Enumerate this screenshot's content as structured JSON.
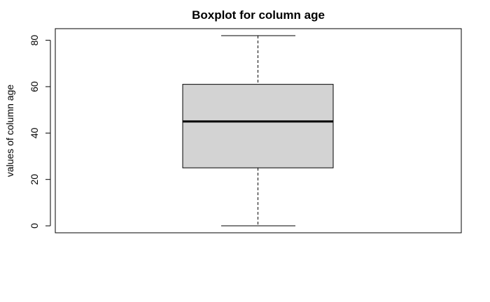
{
  "chart_data": {
    "type": "boxplot",
    "title": "Boxplot for column age",
    "ylabel": "values of column age",
    "xlabel": "",
    "ylim": [
      -3,
      85
    ],
    "yticks": [
      0,
      20,
      40,
      60,
      80
    ],
    "box": {
      "whisker_low": 0,
      "q1": 25,
      "median": 45,
      "q3": 61,
      "whisker_high": 82
    },
    "colors": {
      "box_fill": "#d3d3d3",
      "stroke": "#000000"
    },
    "grid": false
  }
}
